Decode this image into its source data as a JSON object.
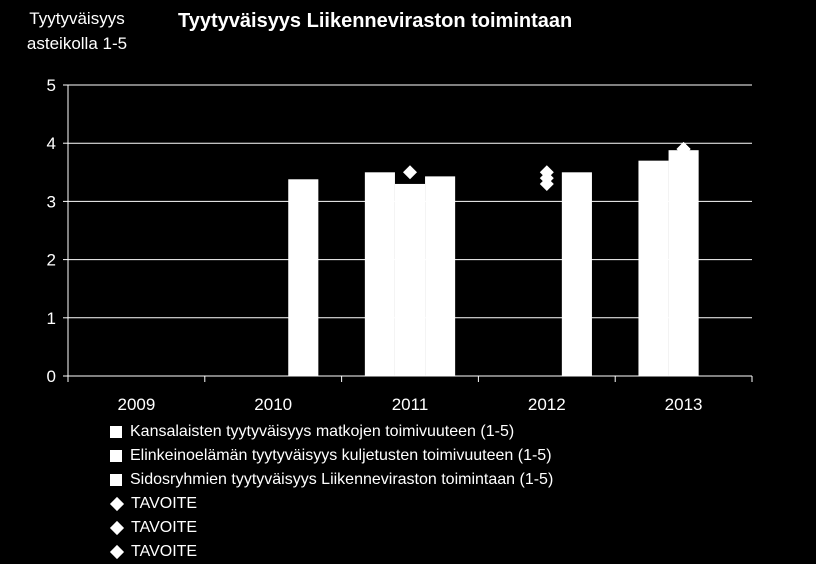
{
  "chart_data": {
    "type": "bar",
    "title": "Tyytyväisyys Liikenneviraston toimintaan",
    "ylabel": "Tyytyväisyys\nasteikolla 1-5",
    "xlabel": "",
    "categories": [
      "2009",
      "2010",
      "2011",
      "2012",
      "2013"
    ],
    "ylim": [
      0,
      5
    ],
    "yticks": [
      0,
      1,
      2,
      3,
      4,
      5
    ],
    "grid": true,
    "legend_position": "bottom",
    "series": [
      {
        "name": "Kansalaisten tyytyväisyys matkojen toimivuuteen (1-5)",
        "kind": "bar",
        "values": [
          null,
          null,
          3.5,
          null,
          3.7
        ]
      },
      {
        "name": "Elinkeinoelämän tyytyväisyys kuljetusten toimivuuteen (1-5)",
        "kind": "bar",
        "values": [
          null,
          null,
          3.3,
          null,
          3.88
        ]
      },
      {
        "name": "Sidosryhmien tyytyväisyys Liikenneviraston toimintaan (1-5)",
        "kind": "bar",
        "values": [
          null,
          3.38,
          3.43,
          3.5,
          null
        ]
      },
      {
        "name": "TAVOITE",
        "kind": "marker",
        "values": [
          null,
          null,
          3.5,
          3.5,
          3.9
        ]
      },
      {
        "name": "TAVOITE",
        "kind": "marker",
        "values": [
          null,
          null,
          null,
          3.4,
          3.9
        ]
      },
      {
        "name": "TAVOITE",
        "kind": "marker",
        "values": [
          null,
          null,
          null,
          3.3,
          3.9
        ]
      }
    ],
    "colors": {
      "background": "#000000",
      "foreground": "#ffffff"
    }
  }
}
